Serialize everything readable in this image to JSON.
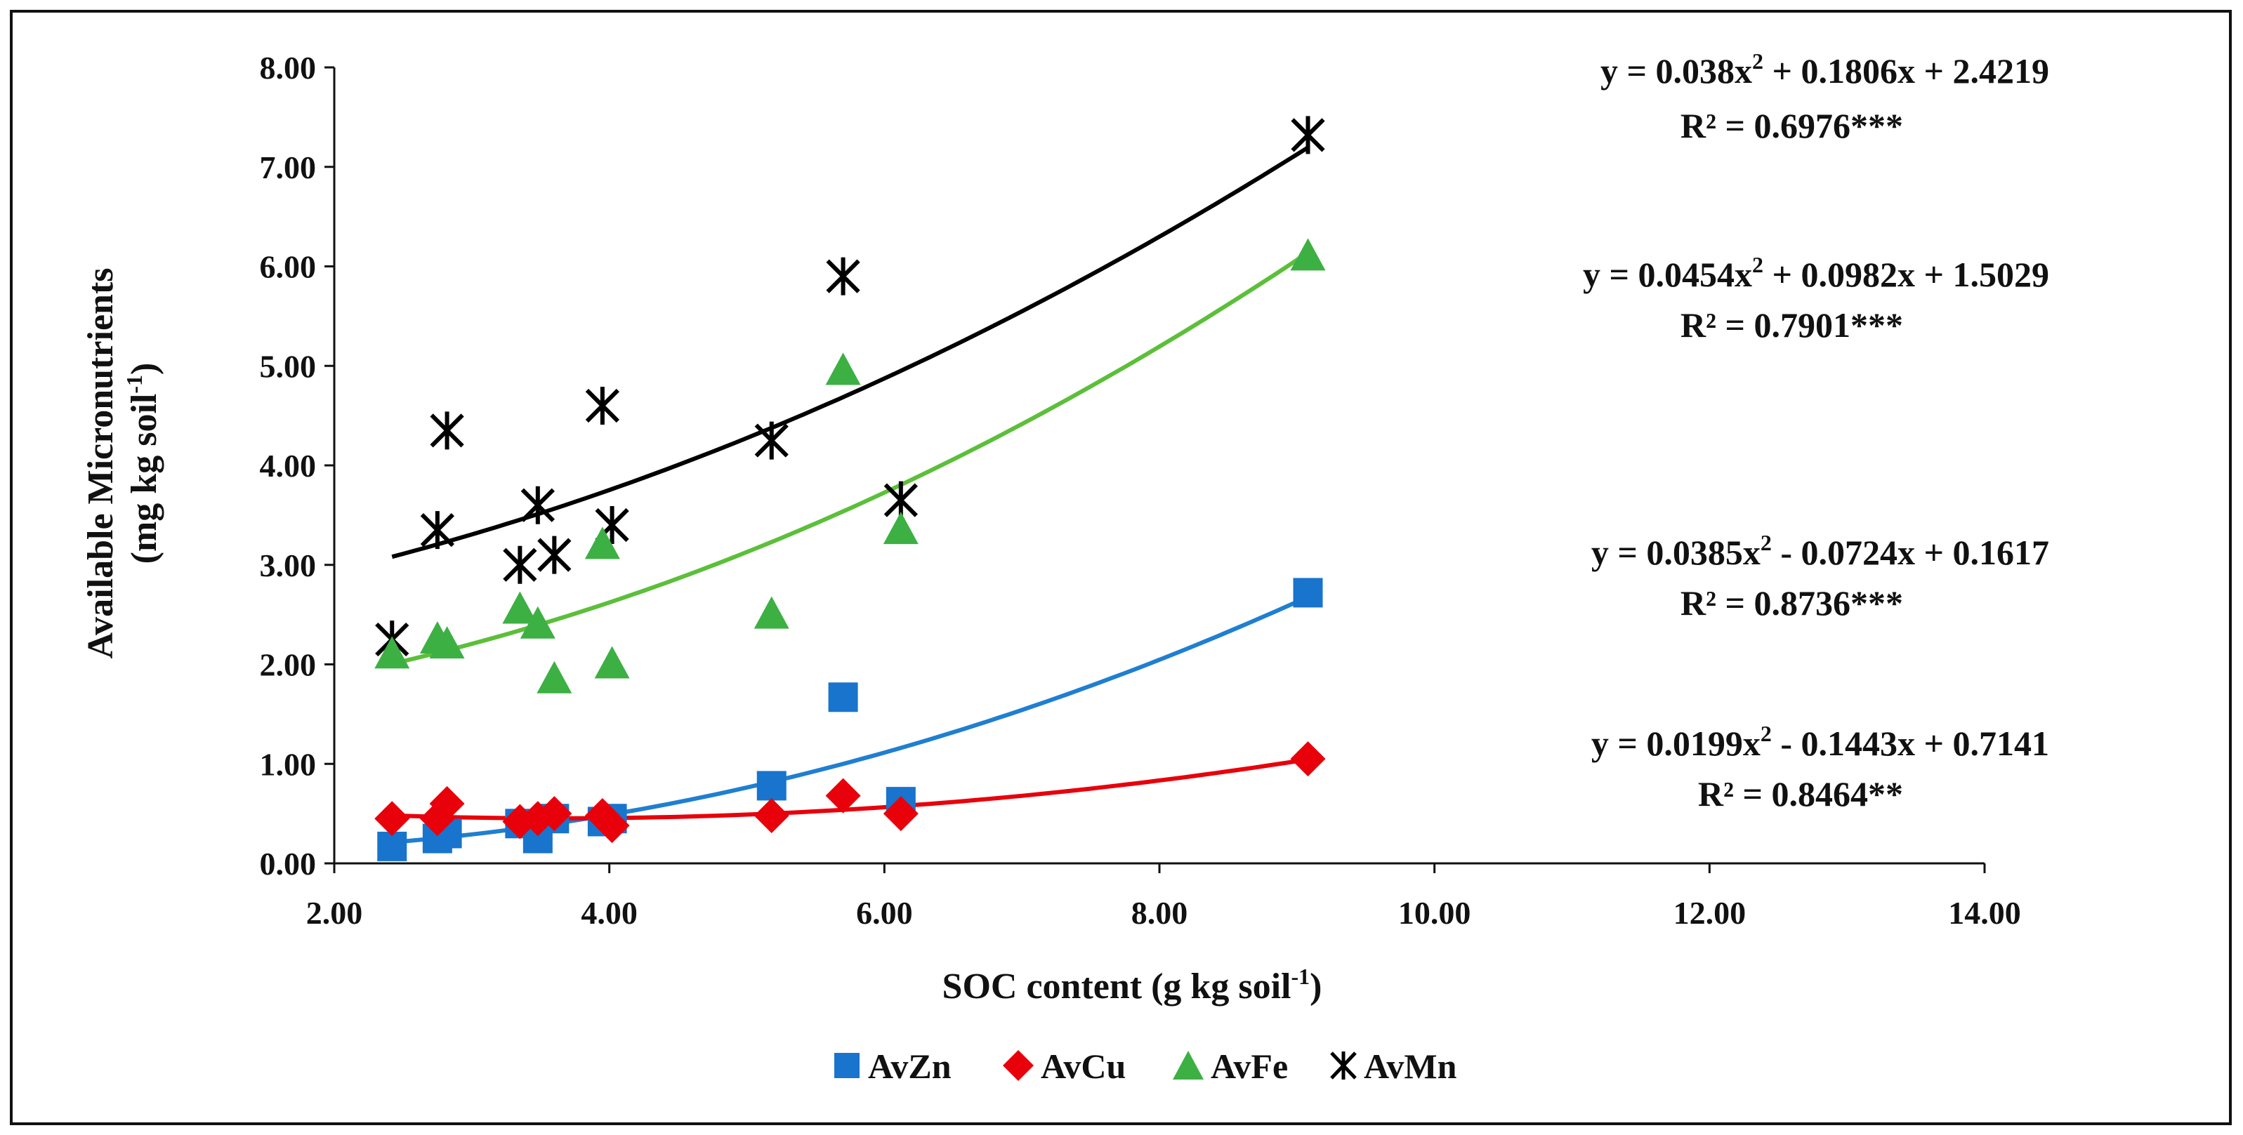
{
  "chart_data": {
    "type": "scatter",
    "xlabel": "SOC content (g kg soil",
    "xlabel_sup": "-1",
    "xlabel_end": ")",
    "ylabel_line1": "Available Micronutrients",
    "ylabel_line2": "(mg kg soil",
    "ylabel_sup": "-1",
    "ylabel_end": ")",
    "xlim": [
      2,
      14
    ],
    "ylim": [
      0,
      8
    ],
    "x_ticks": [
      "2.00",
      "4.00",
      "6.00",
      "8.00",
      "10.00",
      "12.00",
      "14.00"
    ],
    "y_ticks": [
      "0.00",
      "1.00",
      "2.00",
      "3.00",
      "4.00",
      "5.00",
      "6.00",
      "7.00",
      "8.00"
    ],
    "legend_position": "bottom",
    "series": [
      {
        "name": "AvZn",
        "marker": "square",
        "color": "#1874cd",
        "x": [
          2.42,
          2.75,
          2.82,
          3.35,
          3.48,
          3.6,
          3.95,
          4.02,
          5.18,
          5.7,
          6.12,
          9.08
        ],
        "y": [
          0.17,
          0.25,
          0.3,
          0.4,
          0.25,
          0.45,
          0.42,
          0.45,
          0.78,
          1.67,
          0.62,
          2.72
        ],
        "fit": {
          "a": 0.0385,
          "b": -0.0724,
          "c": 0.1617
        },
        "equation": "y = 0.0385x",
        "equation_rest": " - 0.0724x + 0.1617",
        "r2": "R² = 0.8736***"
      },
      {
        "name": "AvCu",
        "marker": "diamond",
        "color": "#e8000b",
        "x": [
          2.42,
          2.75,
          2.82,
          3.35,
          3.48,
          3.6,
          3.95,
          4.02,
          5.18,
          5.7,
          6.12,
          9.08
        ],
        "y": [
          0.45,
          0.45,
          0.6,
          0.42,
          0.45,
          0.5,
          0.48,
          0.38,
          0.48,
          0.68,
          0.5,
          1.05
        ],
        "fit": {
          "a": 0.0199,
          "b": -0.1443,
          "c": 0.7141
        },
        "equation": "y = 0.0199x",
        "equation_rest": " - 0.1443x + 0.7141",
        "r2": "R² = 0.8464**"
      },
      {
        "name": "AvFe",
        "marker": "triangle",
        "color": "#3cb043",
        "x": [
          2.42,
          2.75,
          2.82,
          3.35,
          3.48,
          3.6,
          3.95,
          4.02,
          5.18,
          5.7,
          6.12,
          9.08
        ],
        "y": [
          2.1,
          2.25,
          2.2,
          2.55,
          2.4,
          1.85,
          3.2,
          2.0,
          2.5,
          4.95,
          3.35,
          6.1
        ],
        "fit": {
          "a": 0.0454,
          "b": 0.0982,
          "c": 1.5029
        },
        "equation": "y = 0.0454x",
        "equation_rest": " + 0.0982x + 1.5029",
        "r2": "R² = 0.7901***"
      },
      {
        "name": "AvMn",
        "marker": "asterisk",
        "color": "#000000",
        "x": [
          2.42,
          2.75,
          2.82,
          3.35,
          3.48,
          3.6,
          3.95,
          4.02,
          5.18,
          5.7,
          6.12,
          9.08
        ],
        "y": [
          2.25,
          3.35,
          4.35,
          3.0,
          3.6,
          3.1,
          4.6,
          3.4,
          4.25,
          5.9,
          3.65,
          7.32
        ],
        "fit": {
          "a": 0.038,
          "b": 0.1806,
          "c": 2.4219
        },
        "equation": "y = 0.038x",
        "equation_rest": " + 0.1806x + 2.4219",
        "r2": "R² = 0.6976***"
      }
    ]
  }
}
